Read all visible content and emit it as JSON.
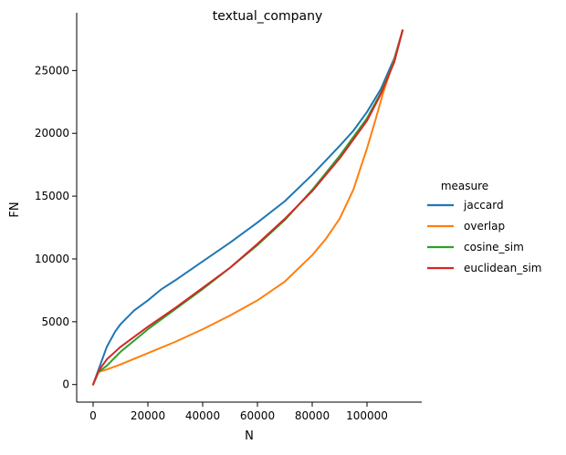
{
  "chart_data": {
    "type": "line",
    "title": "textual_company",
    "xlabel": "N",
    "ylabel": "FN",
    "xlim": [
      -6000,
      120000
    ],
    "ylim": [
      -1400,
      29600
    ],
    "x_ticks": [
      0,
      20000,
      40000,
      60000,
      80000,
      100000
    ],
    "x_tick_labels": [
      "0",
      "20000",
      "40000",
      "60000",
      "80000",
      "100000"
    ],
    "y_ticks": [
      0,
      5000,
      10000,
      15000,
      20000,
      25000
    ],
    "y_tick_labels": [
      "0",
      "5000",
      "10000",
      "15000",
      "20000",
      "25000"
    ],
    "grid": false,
    "legend": {
      "title": "measure",
      "placement": "right"
    },
    "series": [
      {
        "name": "jaccard",
        "color": "#1f77b4",
        "x": [
          0,
          2000,
          5000,
          8000,
          10000,
          15000,
          20000,
          25000,
          30000,
          40000,
          50000,
          60000,
          70000,
          80000,
          90000,
          95000,
          100000,
          105000,
          110000,
          113000
        ],
        "y": [
          0,
          1200,
          3000,
          4200,
          4800,
          5900,
          6700,
          7600,
          8300,
          9800,
          11300,
          12900,
          14600,
          16700,
          19000,
          20200,
          21700,
          23500,
          26000,
          28200
        ]
      },
      {
        "name": "overlap",
        "color": "#ff7f0e",
        "x": [
          0,
          2000,
          5000,
          10000,
          20000,
          30000,
          40000,
          50000,
          60000,
          70000,
          80000,
          85000,
          90000,
          95000,
          100000,
          103000,
          106000,
          110000,
          113000
        ],
        "y": [
          0,
          1000,
          1200,
          1600,
          2500,
          3400,
          4400,
          5500,
          6700,
          8200,
          10300,
          11600,
          13200,
          15500,
          18800,
          21000,
          23300,
          25900,
          28200
        ]
      },
      {
        "name": "cosine_sim",
        "color": "#2ca02c",
        "x": [
          0,
          2000,
          5000,
          10000,
          20000,
          30000,
          40000,
          50000,
          60000,
          70000,
          80000,
          90000,
          100000,
          105000,
          110000,
          113000
        ],
        "y": [
          0,
          1000,
          1500,
          2600,
          4400,
          6000,
          7600,
          9300,
          11100,
          13100,
          15500,
          18200,
          21200,
          23200,
          25800,
          28200
        ]
      },
      {
        "name": "euclidean_sim",
        "color": "#d62728",
        "x": [
          0,
          2000,
          5000,
          10000,
          20000,
          30000,
          40000,
          50000,
          60000,
          70000,
          80000,
          90000,
          100000,
          105000,
          110000,
          113000
        ],
        "y": [
          0,
          1100,
          2000,
          3000,
          4600,
          6100,
          7700,
          9300,
          11200,
          13200,
          15400,
          18000,
          21000,
          23100,
          25700,
          28200
        ]
      }
    ]
  }
}
